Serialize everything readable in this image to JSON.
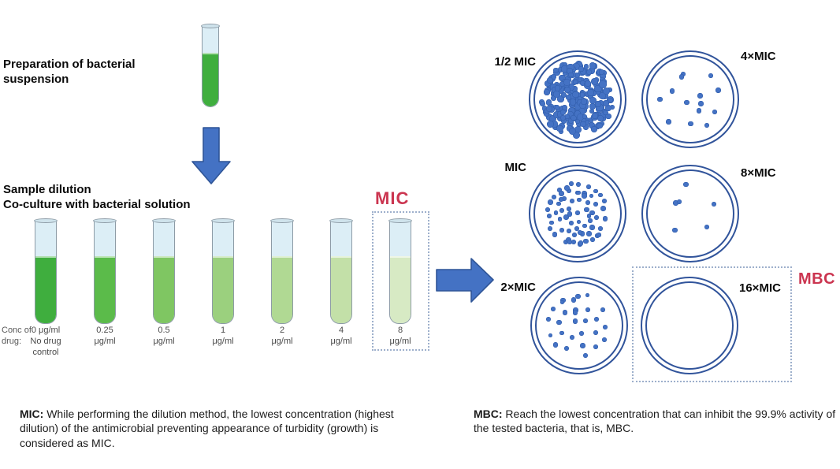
{
  "colors": {
    "accent_red": "#cb3550",
    "arrow_blue": "#4472c4",
    "arrow_border": "#2f5597",
    "dish_ring_blue": "#31549b",
    "colony_blue": "#4472c4",
    "tube_glass_blue": "#dceef6"
  },
  "prep": {
    "title": "Preparation of bacterial\nsuspension"
  },
  "dilution": {
    "title": "Sample dilution\nCo-culture with bacterial solution",
    "conc_label": "Conc of\ndrug:",
    "mic_label": "MIC",
    "stock_tube_color": "#3fae3e",
    "tubes": [
      {
        "label": "0 μg/ml\nNo drug\ncontrol",
        "color": "#3fae3e"
      },
      {
        "label": "0.25\nμg/ml",
        "color": "#5bbb4a"
      },
      {
        "label": "0.5\nμg/ml",
        "color": "#7fc662"
      },
      {
        "label": "1\nμg/ml",
        "color": "#9bd07e"
      },
      {
        "label": "2\nμg/ml",
        "color": "#b0d993"
      },
      {
        "label": "4\nμg/ml",
        "color": "#c3e0a8"
      },
      {
        "label": "8\nμg/ml",
        "color": "#d7eac4"
      }
    ]
  },
  "plates": {
    "mbc_label": "MBC",
    "dishes": [
      {
        "label": "1/2 MIC",
        "colonies": 230
      },
      {
        "label": "4×MIC",
        "colonies": 14
      },
      {
        "label": "MIC",
        "colonies": 65
      },
      {
        "label": "8×MIC",
        "colonies": 6
      },
      {
        "label": "2×MIC",
        "colonies": 28
      },
      {
        "label": "16×MIC",
        "colonies": 0
      }
    ]
  },
  "captions": {
    "mic_term": "MIC:",
    "mic_text": " While performing the dilution method, the lowest concentration (highest dilution) of the antimicrobial preventing appearance of turbidity (growth) is considered as MIC.",
    "mbc_term": "MBC:",
    "mbc_text": " Reach the lowest concentration that can inhibit the 99.9% activity of the tested bacteria, that is, MBC."
  }
}
